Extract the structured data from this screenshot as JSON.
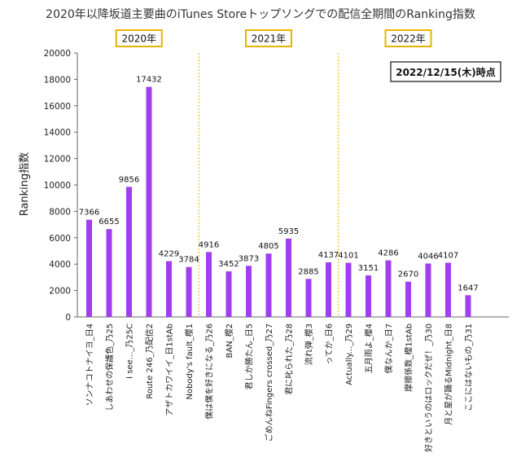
{
  "chart_data": {
    "type": "bar",
    "title": "2020年以降坂道主要曲のiTunes Storeトップソングでの配信全期間のRanking指数",
    "ylabel": "Ranking指数",
    "xlabel": "",
    "ylim": [
      0,
      20000
    ],
    "yticks": [
      0,
      2000,
      4000,
      6000,
      8000,
      10000,
      12000,
      14000,
      16000,
      18000,
      20000
    ],
    "grid": false,
    "bar_color": "#a23ef0",
    "year_box_color": "#e8b400",
    "divider_color": "#e8b400",
    "annotation": "2022/12/15(木)時点",
    "year_groups": [
      {
        "label": "2020年",
        "start": 0,
        "end": 5
      },
      {
        "label": "2021年",
        "start": 6,
        "end": 12
      },
      {
        "label": "2022年",
        "start": 13,
        "end": 19
      }
    ],
    "categories": [
      "ソンナコトナイヨ_日4",
      "しあわせの保護色_乃25",
      "I see..._乃25C",
      "Route 246_乃配信2",
      "アザトカワイイ_日1stAb",
      "Nobody's fault_櫻1",
      "僕は僕を好きになる_乃26",
      "BAN_櫻2",
      "君しか勝たん_日5",
      "ごめんねFingers crossed_乃27",
      "君に叱られた_乃28",
      "流れ弾_櫻3",
      "ってか_日6",
      "Actually..._乃29",
      "五月雨よ_櫻4",
      "僕なんか_日7",
      "摩擦係数_櫻1stAb",
      "好きというのはロックだぜ！_乃30",
      "月と星が踊るMidnight_日8",
      "ここにはないもの_乃31"
    ],
    "values": [
      7366,
      6655,
      9856,
      17432,
      4229,
      3784,
      4916,
      3452,
      3873,
      4805,
      5935,
      2885,
      4137,
      4101,
      3151,
      4286,
      2670,
      4046,
      4107,
      1647
    ]
  }
}
